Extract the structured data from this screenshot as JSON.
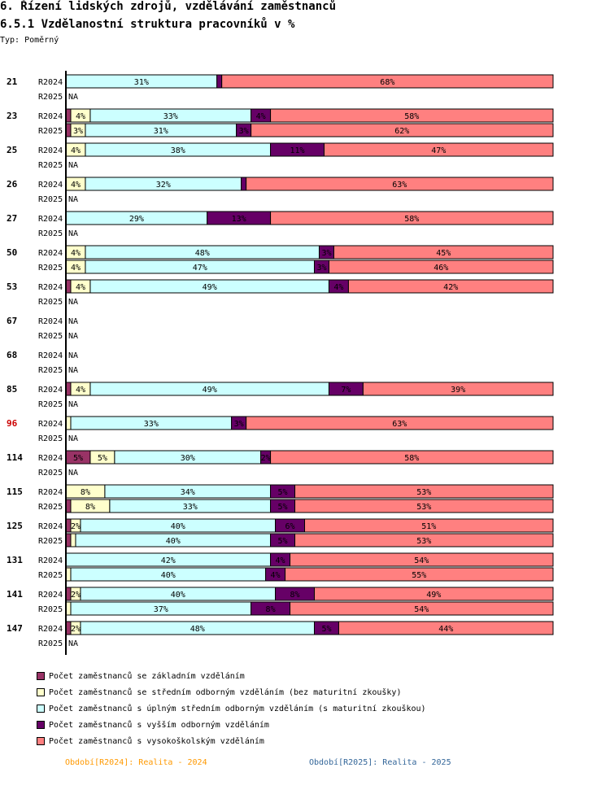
{
  "header": {
    "title": "6. Řízení lidských zdrojů, vzdělávání zaměstnanců",
    "subtitle": "6.5.1 Vzdělanostní struktura pracovníků v %",
    "typ": "Typ: Poměrný"
  },
  "colors": {
    "series": [
      "#993366",
      "#ffffcc",
      "#ccffff",
      "#660066",
      "#ff8080"
    ],
    "highlight_label": "#cc0000",
    "footer_2024": "#ff9900",
    "footer_2025": "#336699"
  },
  "chart_data": {
    "type": "bar",
    "orientation": "horizontal",
    "stacked": true,
    "normalized": "percent",
    "title": "6.5.1 Vzdělanostní struktura pracovníků v %",
    "series": [
      {
        "name": "Počet zaměstnanců se základním vzděláním"
      },
      {
        "name": "Počet zaměstnanců se středním odborným vzděláním (bez maturitní zkoušky)"
      },
      {
        "name": "Počet zaměstnanců s úplným středním odborným vzděláním (s maturitní zkouškou)"
      },
      {
        "name": "Počet zaměstnanců s vyšším odborným vzděláním"
      },
      {
        "name": "Počet zaměstnanců s vysokoškolským vzděláním"
      }
    ],
    "na_label": "NA",
    "groups": [
      {
        "label": "21",
        "rows": [
          {
            "period": "R2024",
            "values": [
              0,
              0,
              31,
              1,
              68
            ],
            "labels": [
              "",
              "",
              "31%",
              "",
              "68%"
            ]
          },
          {
            "period": "R2025",
            "values": null
          }
        ]
      },
      {
        "label": "23",
        "rows": [
          {
            "period": "R2024",
            "values": [
              1,
              4,
              33,
              4,
              58
            ],
            "labels": [
              "",
              "4%",
              "33%",
              "4%",
              "58%"
            ]
          },
          {
            "period": "R2025",
            "values": [
              1,
              3,
              31,
              3,
              62
            ],
            "labels": [
              "",
              "3%",
              "31%",
              "3%",
              "62%"
            ]
          }
        ]
      },
      {
        "label": "25",
        "rows": [
          {
            "period": "R2024",
            "values": [
              0,
              4,
              38,
              11,
              47
            ],
            "labels": [
              "",
              "4%",
              "38%",
              "11%",
              "47%"
            ]
          },
          {
            "period": "R2025",
            "values": null
          }
        ]
      },
      {
        "label": "26",
        "rows": [
          {
            "period": "R2024",
            "values": [
              0,
              4,
              32,
              1,
              63
            ],
            "labels": [
              "",
              "4%",
              "32%",
              "",
              "63%"
            ]
          },
          {
            "period": "R2025",
            "values": null
          }
        ]
      },
      {
        "label": "27",
        "rows": [
          {
            "period": "R2024",
            "values": [
              0,
              0,
              29,
              13,
              58
            ],
            "labels": [
              "",
              "",
              "29%",
              "13%",
              "58%"
            ]
          },
          {
            "period": "R2025",
            "values": null
          }
        ]
      },
      {
        "label": "50",
        "rows": [
          {
            "period": "R2024",
            "values": [
              0,
              4,
              48,
              3,
              45
            ],
            "labels": [
              "",
              "4%",
              "48%",
              "3%",
              "45%"
            ]
          },
          {
            "period": "R2025",
            "values": [
              0,
              4,
              47,
              3,
              46
            ],
            "labels": [
              "",
              "4%",
              "47%",
              "3%",
              "46%"
            ]
          }
        ]
      },
      {
        "label": "53",
        "rows": [
          {
            "period": "R2024",
            "values": [
              1,
              4,
              49,
              4,
              42
            ],
            "labels": [
              "",
              "4%",
              "49%",
              "4%",
              "42%"
            ]
          },
          {
            "period": "R2025",
            "values": null
          }
        ]
      },
      {
        "label": "67",
        "rows": [
          {
            "period": "R2024",
            "values": null
          },
          {
            "period": "R2025",
            "values": null
          }
        ]
      },
      {
        "label": "68",
        "rows": [
          {
            "period": "R2024",
            "values": null
          },
          {
            "period": "R2025",
            "values": null
          }
        ]
      },
      {
        "label": "85",
        "rows": [
          {
            "period": "R2024",
            "values": [
              1,
              4,
              49,
              7,
              39
            ],
            "labels": [
              "",
              "4%",
              "49%",
              "7%",
              "39%"
            ]
          },
          {
            "period": "R2025",
            "values": null
          }
        ]
      },
      {
        "label": "96",
        "highlight": true,
        "rows": [
          {
            "period": "R2024",
            "values": [
              0,
              1,
              33,
              3,
              63
            ],
            "labels": [
              "",
              "",
              "33%",
              "3%",
              "63%"
            ]
          },
          {
            "period": "R2025",
            "values": null
          }
        ]
      },
      {
        "label": "114",
        "rows": [
          {
            "period": "R2024",
            "values": [
              5,
              5,
              30,
              2,
              58
            ],
            "labels": [
              "5%",
              "5%",
              "30%",
              "2%",
              "58%"
            ]
          },
          {
            "period": "R2025",
            "values": null
          }
        ]
      },
      {
        "label": "115",
        "rows": [
          {
            "period": "R2024",
            "values": [
              0,
              8,
              34,
              5,
              53
            ],
            "labels": [
              "",
              "8%",
              "34%",
              "5%",
              "53%"
            ]
          },
          {
            "period": "R2025",
            "values": [
              1,
              8,
              33,
              5,
              53
            ],
            "labels": [
              "",
              "8%",
              "33%",
              "5%",
              "53%"
            ]
          }
        ]
      },
      {
        "label": "125",
        "rows": [
          {
            "period": "R2024",
            "values": [
              1,
              2,
              40,
              6,
              51
            ],
            "labels": [
              "",
              "2%",
              "40%",
              "6%",
              "51%"
            ]
          },
          {
            "period": "R2025",
            "values": [
              1,
              1,
              40,
              5,
              53
            ],
            "labels": [
              "",
              "",
              "40%",
              "5%",
              "53%"
            ]
          }
        ]
      },
      {
        "label": "131",
        "rows": [
          {
            "period": "R2024",
            "values": [
              0,
              0,
              42,
              4,
              54
            ],
            "labels": [
              "",
              "",
              "42%",
              "4%",
              "54%"
            ]
          },
          {
            "period": "R2025",
            "values": [
              0,
              1,
              40,
              4,
              55
            ],
            "labels": [
              "",
              "",
              "40%",
              "4%",
              "55%"
            ]
          }
        ]
      },
      {
        "label": "141",
        "rows": [
          {
            "period": "R2024",
            "values": [
              1,
              2,
              40,
              8,
              49
            ],
            "labels": [
              "",
              "2%",
              "40%",
              "8%",
              "49%"
            ]
          },
          {
            "period": "R2025",
            "values": [
              0,
              1,
              37,
              8,
              54
            ],
            "labels": [
              "",
              "",
              "37%",
              "8%",
              "54%"
            ]
          }
        ]
      },
      {
        "label": "147",
        "rows": [
          {
            "period": "R2024",
            "values": [
              1,
              2,
              48,
              5,
              44
            ],
            "labels": [
              "",
              "2%",
              "48%",
              "5%",
              "44%"
            ]
          },
          {
            "period": "R2025",
            "values": null
          }
        ]
      }
    ]
  },
  "footer": {
    "period_2024": "Období[R2024]: Realita - 2024",
    "period_2025": "Období[R2025]: Realita - 2025"
  }
}
